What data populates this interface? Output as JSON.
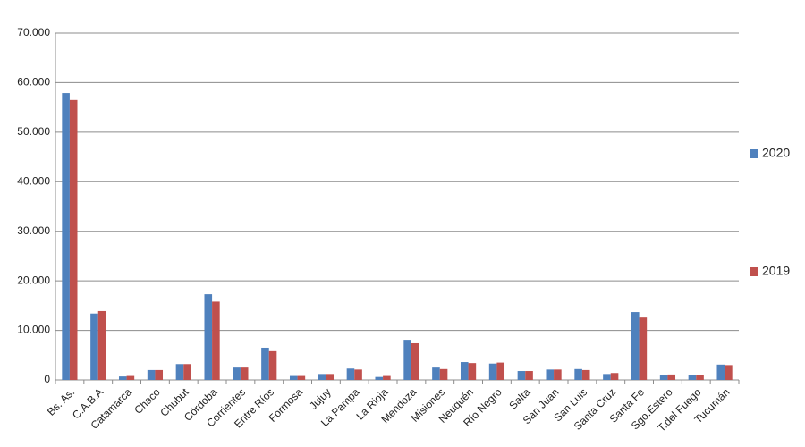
{
  "chart_data": {
    "type": "bar",
    "categories": [
      "Bs. As.",
      "C.A.B.A",
      "Catamarca",
      "Chaco",
      "Chubut",
      "Córdoba",
      "Corrientes",
      "Entre Ríos",
      "Formosa",
      "Jujuy",
      "La Pampa",
      "La Rioja",
      "Mendoza",
      "Misiones",
      "Neuquén",
      "Río Negro",
      "Salta",
      "San Juan",
      "San Luis",
      "Santa Cruz",
      "Santa Fe",
      "Sgo.Estero",
      "T.del Fuego",
      "Tucumán"
    ],
    "series": [
      {
        "name": "2020",
        "color": "#4f81bd",
        "values": [
          57900,
          13400,
          700,
          2000,
          3200,
          17300,
          2500,
          6500,
          800,
          1200,
          2300,
          600,
          8100,
          2500,
          3600,
          3300,
          1800,
          2100,
          2200,
          1200,
          13700,
          900,
          1000,
          3100
        ]
      },
      {
        "name": "2019",
        "color": "#c0504d",
        "values": [
          56500,
          13900,
          800,
          2000,
          3200,
          15800,
          2500,
          5800,
          800,
          1200,
          2100,
          800,
          7400,
          2200,
          3400,
          3500,
          1800,
          2100,
          2000,
          1400,
          12600,
          1100,
          1000,
          3000
        ]
      }
    ],
    "ylim": [
      0,
      70000
    ],
    "yticks": [
      {
        "value": 0,
        "label": "0"
      },
      {
        "value": 10000,
        "label": "10.000"
      },
      {
        "value": 20000,
        "label": "20.000"
      },
      {
        "value": 30000,
        "label": "30.000"
      },
      {
        "value": 40000,
        "label": "40.000"
      },
      {
        "value": 50000,
        "label": "50.000"
      },
      {
        "value": 60000,
        "label": "60.000"
      },
      {
        "value": 70000,
        "label": "70.000"
      }
    ],
    "grid": true,
    "legend": "right"
  }
}
